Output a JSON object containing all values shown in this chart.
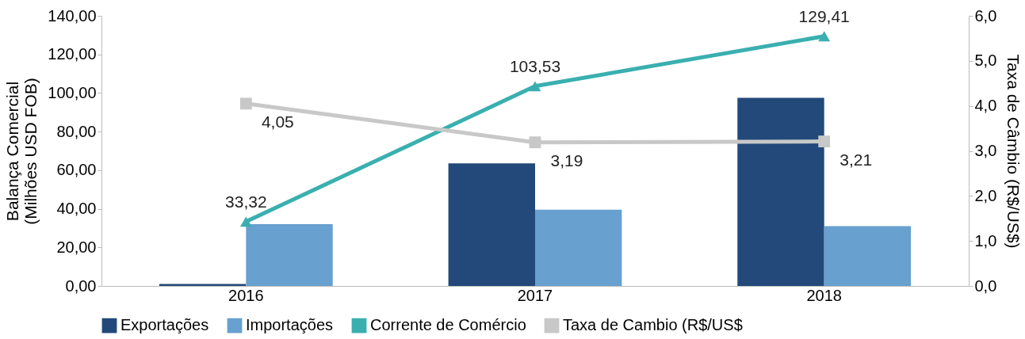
{
  "chart_data": {
    "type": "bar",
    "categories": [
      "2016",
      "2017",
      "2018"
    ],
    "ylabel": "Balança Comercial\n(Milhões USD FOB)",
    "y2label": "Taxa de Câmbio (R$/US$)",
    "ylim": [
      0,
      140
    ],
    "yticks": [
      {
        "value": 0,
        "label": "0,00"
      },
      {
        "value": 20,
        "label": "20,00"
      },
      {
        "value": 40,
        "label": "40,00"
      },
      {
        "value": 60,
        "label": "60,00"
      },
      {
        "value": 80,
        "label": "80,00"
      },
      {
        "value": 100,
        "label": "100,00"
      },
      {
        "value": 120,
        "label": "120,00"
      },
      {
        "value": 140,
        "label": "140,00"
      }
    ],
    "y2lim": [
      0,
      6
    ],
    "y2ticks": [
      {
        "value": 0,
        "label": "0,0"
      },
      {
        "value": 1,
        "label": "1,0"
      },
      {
        "value": 2,
        "label": "2,0"
      },
      {
        "value": 3,
        "label": "3,0"
      },
      {
        "value": 4,
        "label": "4,0"
      },
      {
        "value": 5,
        "label": "5,0"
      },
      {
        "value": 6,
        "label": "6,0"
      }
    ],
    "grid": false,
    "legend": "bottom",
    "line_style": "solid",
    "series": [
      {
        "name": "Exportações",
        "color": "#22497a",
        "values": [
          1,
          63.5,
          97.5
        ]
      },
      {
        "name": "Importações",
        "color": "#68a0cf",
        "values": [
          32,
          39.5,
          31
        ]
      },
      {
        "name": "Corrente de Comércio",
        "type": "line",
        "marker": "triangle",
        "color": "#3aafb0",
        "values": [
          33.32,
          103.53,
          129.41
        ],
        "value_labels": [
          "33,32",
          "103,53",
          "129,41"
        ]
      },
      {
        "name": "Taxa de Cambio (R$/US$",
        "type": "line",
        "axis": "y2",
        "marker": "square",
        "color": "#c8c8c8",
        "values": [
          4.05,
          3.19,
          3.21
        ],
        "value_labels": [
          "4,05",
          "3,19",
          "3,21"
        ]
      }
    ]
  }
}
